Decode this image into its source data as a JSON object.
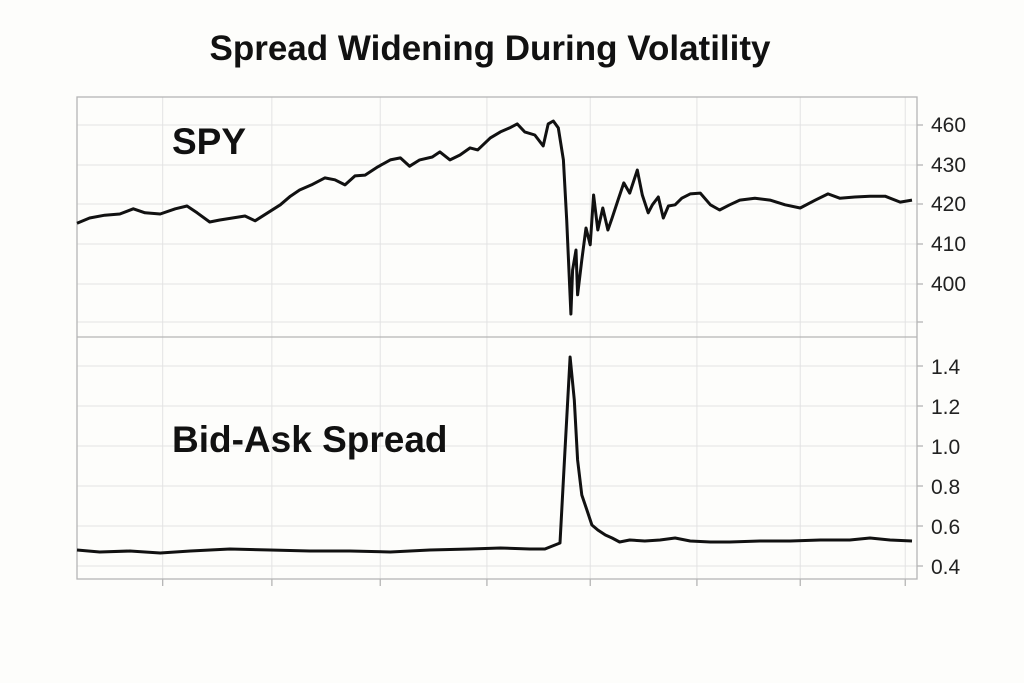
{
  "chart_data": [
    {
      "type": "line",
      "title": "Spread Widening During Volatility",
      "panel_label": "SPY",
      "y_ticks": [
        460,
        430,
        420,
        410,
        400
      ],
      "y_axis_side": "right",
      "grid": true,
      "line_color": "#111111",
      "x": [
        0,
        1.5,
        3.3,
        5.1,
        6.7,
        8.1,
        9.9,
        11.7,
        13.1,
        14.3,
        15.8,
        17,
        18.5,
        20,
        21.2,
        22.7,
        24.2,
        25.4,
        26.5,
        27.9,
        29.5,
        30.7,
        31.9,
        33.1,
        34.3,
        35.8,
        37.3,
        38.5,
        39.6,
        40.8,
        42.3,
        43.2,
        44.4,
        45.6,
        46.8,
        47.7,
        49.2,
        50.4,
        51.5,
        52.4,
        53.3,
        54.5,
        55.5,
        56.1,
        56.7,
        57.3,
        57.9,
        58.3,
        58.8,
        59,
        59.4,
        59.6,
        60.1,
        60.6,
        61.1,
        61.5,
        62,
        62.6,
        63.2,
        63.7,
        64.4,
        65.1,
        65.8,
        66.7,
        67.3,
        68,
        68.5,
        69.2,
        69.8,
        70.4,
        71.2,
        72,
        73,
        74.2,
        75.4,
        76.5,
        77.7,
        78.9,
        80.7,
        82.5,
        84.3,
        86.1,
        87.9,
        89.4,
        90.8,
        92.6,
        94.4,
        96.2,
        98,
        99.4
      ],
      "values": [
        415.2,
        416.5,
        417.2,
        417.5,
        418.8,
        417.8,
        417.5,
        418.8,
        419.5,
        417.8,
        415.5,
        416,
        416.5,
        417,
        415.8,
        417.8,
        419.8,
        422,
        423.6,
        424.9,
        426.7,
        426.2,
        424.9,
        427.2,
        427.4,
        429.5,
        433.8,
        435.3,
        429.7,
        433.8,
        436,
        439.8,
        433.8,
        437.5,
        442.8,
        441.3,
        450.3,
        454.8,
        457.8,
        460.8,
        454.8,
        452.5,
        444.3,
        460.8,
        463,
        457.8,
        433.8,
        416,
        392.5,
        403.5,
        408.5,
        397.3,
        406,
        414,
        409.8,
        422.3,
        413.5,
        419,
        413.5,
        416.5,
        421,
        425.4,
        422.8,
        428.7,
        422.3,
        417.8,
        419.8,
        421.8,
        416.5,
        419.5,
        419.8,
        421.5,
        422.6,
        422.8,
        419.8,
        418.5,
        419.8,
        421,
        421.5,
        421,
        419.8,
        419,
        421,
        422.6,
        421.5,
        421.8,
        422,
        422,
        420.5,
        421
      ]
    },
    {
      "type": "line",
      "panel_label": "Bid-Ask Spread",
      "y_ticks": [
        "1.4",
        "1.2",
        "1.0",
        "0.8",
        "0.6",
        "0.4"
      ],
      "ylim": [
        0.4,
        1.4
      ],
      "y_axis_side": "right",
      "grid": true,
      "line_color": "#111111",
      "x": [
        0,
        2.7,
        6.3,
        9.9,
        13.5,
        18.2,
        23,
        27.7,
        32.5,
        37.3,
        42,
        46.8,
        50.4,
        53.9,
        55.7,
        56.9,
        57.5,
        58.1,
        58.7,
        59.2,
        59.6,
        60.1,
        60.7,
        61.3,
        62,
        62.9,
        63.7,
        64.6,
        65.8,
        67.6,
        69.4,
        71.2,
        73,
        75.4,
        77.7,
        81.3,
        84.9,
        88.5,
        92,
        94.4,
        96.8,
        99.4
      ],
      "values": [
        0.48,
        0.47,
        0.475,
        0.465,
        0.475,
        0.485,
        0.48,
        0.475,
        0.475,
        0.47,
        0.48,
        0.485,
        0.49,
        0.485,
        0.485,
        0.505,
        0.515,
        0.98,
        1.445,
        1.23,
        0.93,
        0.755,
        0.68,
        0.605,
        0.58,
        0.555,
        0.54,
        0.52,
        0.53,
        0.525,
        0.53,
        0.54,
        0.525,
        0.52,
        0.52,
        0.525,
        0.525,
        0.53,
        0.53,
        0.54,
        0.53,
        0.525
      ]
    }
  ]
}
